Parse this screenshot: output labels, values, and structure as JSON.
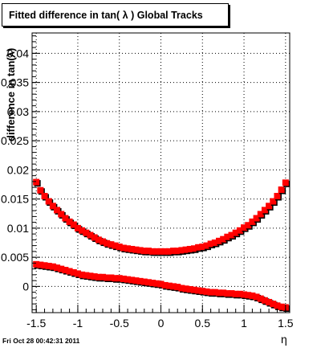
{
  "title": "Fitted difference in tan( λ )  Global Tracks",
  "footer": "Fri Oct 28 00:42:31 2011",
  "chart_data": {
    "type": "scatter",
    "title": "Fitted difference in tan( λ )  Global Tracks",
    "xlabel": "η",
    "ylabel": "difference in tan(λ)",
    "xlim": [
      -1.55,
      1.55
    ],
    "ylim": [
      -0.0045,
      0.0435
    ],
    "xticks": [
      "-1.5",
      "-1",
      "-0.5",
      "0",
      "0.5",
      "1",
      "1.5"
    ],
    "xtick_values": [
      -1.5,
      -1,
      -0.5,
      0,
      0.5,
      1,
      1.5
    ],
    "yticks": [
      "0",
      "0.005",
      "0.01",
      "0.015",
      "0.02",
      "0.025",
      "0.03",
      "0.035",
      "0.04"
    ],
    "ytick_values": [
      0,
      0.005,
      0.01,
      0.015,
      0.02,
      0.025,
      0.03,
      0.035,
      0.04
    ],
    "grid": true,
    "marker_color": "#ff0000",
    "shadow_color": "#000000",
    "series": [
      {
        "x": [
          -1.5,
          -1.45,
          -1.4,
          -1.35,
          -1.3,
          -1.25,
          -1.2,
          -1.15,
          -1.1,
          -1.05,
          -1.0,
          -0.95,
          -0.9,
          -0.85,
          -0.8,
          -0.75,
          -0.7,
          -0.65,
          -0.6,
          -0.55,
          -0.5,
          -0.45,
          -0.4,
          -0.35,
          -0.3,
          -0.25,
          -0.2,
          -0.15,
          -0.1,
          -0.05,
          0.0,
          0.05,
          0.1,
          0.15,
          0.2,
          0.25,
          0.3,
          0.35,
          0.4,
          0.45,
          0.5,
          0.55,
          0.6,
          0.65,
          0.7,
          0.75,
          0.8,
          0.85,
          0.9,
          0.95,
          1.0,
          1.05,
          1.1,
          1.15,
          1.2,
          1.25,
          1.3,
          1.35,
          1.4,
          1.45,
          1.5
        ],
        "values": [
          0.0179,
          0.0165,
          0.0155,
          0.0146,
          0.0138,
          0.0131,
          0.0124,
          0.0117,
          0.0111,
          0.0106,
          0.01,
          0.0096,
          0.0092,
          0.0088,
          0.0084,
          0.008,
          0.0077,
          0.0074,
          0.0072,
          0.007,
          0.0068,
          0.0066,
          0.0065,
          0.0064,
          0.0063,
          0.0062,
          0.0061,
          0.0061,
          0.006,
          0.006,
          0.006,
          0.006,
          0.006,
          0.0061,
          0.0061,
          0.0062,
          0.0063,
          0.0064,
          0.0065,
          0.0067,
          0.0068,
          0.007,
          0.0073,
          0.0075,
          0.0078,
          0.0081,
          0.0085,
          0.0088,
          0.0092,
          0.0096,
          0.0101,
          0.0105,
          0.0111,
          0.0117,
          0.0124,
          0.0131,
          0.0138,
          0.0146,
          0.0155,
          0.0166,
          0.0178
        ]
      },
      {
        "x": [
          -1.5,
          -1.45,
          -1.4,
          -1.35,
          -1.3,
          -1.25,
          -1.2,
          -1.15,
          -1.1,
          -1.05,
          -1.0,
          -0.95,
          -0.9,
          -0.85,
          -0.8,
          -0.75,
          -0.7,
          -0.65,
          -0.6,
          -0.55,
          -0.5,
          -0.45,
          -0.4,
          -0.35,
          -0.3,
          -0.25,
          -0.2,
          -0.15,
          -0.1,
          -0.05,
          0.0,
          0.05,
          0.1,
          0.15,
          0.2,
          0.25,
          0.3,
          0.35,
          0.4,
          0.45,
          0.5,
          0.55,
          0.6,
          0.65,
          0.7,
          0.75,
          0.8,
          0.85,
          0.9,
          0.95,
          1.0,
          1.05,
          1.1,
          1.15,
          1.2,
          1.25,
          1.3,
          1.35,
          1.4,
          1.45,
          1.5
        ],
        "values": [
          0.0038,
          0.0037,
          0.0036,
          0.0035,
          0.0034,
          0.0032,
          0.003,
          0.0028,
          0.0026,
          0.0024,
          0.0022,
          0.002,
          0.0019,
          0.0018,
          0.0017,
          0.0016,
          0.0016,
          0.0015,
          0.0015,
          0.0014,
          0.0014,
          0.0013,
          0.0012,
          0.0011,
          0.001,
          0.0009,
          0.0008,
          0.0007,
          0.0006,
          0.0005,
          0.0004,
          0.0002,
          0.0001,
          0.0,
          -0.0001,
          -0.0003,
          -0.0004,
          -0.0005,
          -0.0006,
          -0.0007,
          -0.0008,
          -0.0009,
          -0.001,
          -0.001,
          -0.0011,
          -0.0011,
          -0.0012,
          -0.0012,
          -0.0013,
          -0.0013,
          -0.0014,
          -0.0015,
          -0.0016,
          -0.0018,
          -0.0021,
          -0.0024,
          -0.0027,
          -0.003,
          -0.0033,
          -0.0035,
          -0.0036
        ]
      }
    ]
  }
}
